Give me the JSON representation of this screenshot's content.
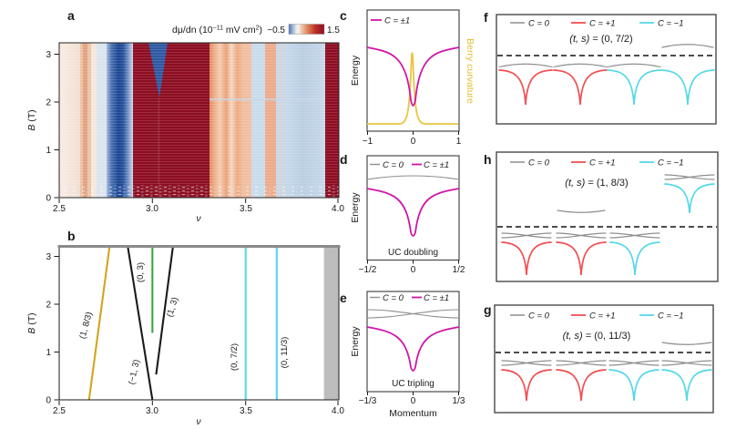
{
  "colors": {
    "black": "#1a1a1a",
    "gray": "#8e8e8e",
    "red": "#f24e52",
    "cyan": "#55d8e8",
    "magenta": "#d016a8",
    "yellow": "#e9c53e",
    "gold": "#d2a51f",
    "green": "#3aa83a",
    "dark_red": "#8d0e22",
    "dark_blue": "#1c4590",
    "shade_gray": "#bdbdbd"
  },
  "panel_a": {
    "label": "a",
    "colorbar": {
      "p1": "dμ/dn (10",
      "sup1": "−11",
      "p2": " mV cm",
      "sup2": "2",
      "p3": ")",
      "min": "−0.5",
      "max": "1.5"
    },
    "ylabel_var": "B",
    "ylabel_unit": " (T)",
    "xlabel": "ν",
    "yticks": [
      "0",
      "1",
      "2",
      "3"
    ],
    "xticks": [
      "2.5",
      "3.0",
      "3.5",
      "4.0"
    ]
  },
  "panel_b": {
    "label": "b",
    "ylabel_var": "B",
    "ylabel_unit": " (T)",
    "xlabel": "ν",
    "yticks": [
      "0",
      "1",
      "2",
      "3"
    ],
    "xticks": [
      "2.5",
      "3.0",
      "3.5",
      "4.0"
    ],
    "lines": [
      {
        "label": "(1, 8/3)",
        "color": "gold",
        "from": [
          2.66,
          0
        ],
        "to": [
          2.77,
          3.2
        ]
      },
      {
        "label": "(−1, 3)",
        "color": "black",
        "from": [
          3.0,
          0
        ],
        "to": [
          2.868,
          3.2
        ]
      },
      {
        "label": "(0, 3)",
        "color": "green",
        "from": [
          3.0,
          1.4
        ],
        "to": [
          3.0,
          3.2
        ]
      },
      {
        "label": "(1, 3)",
        "color": "black",
        "from": [
          3.02,
          0.53
        ],
        "to": [
          3.11,
          3.2
        ]
      },
      {
        "label": "(0, 7/2)",
        "color": "cyan",
        "from": [
          3.5,
          0
        ],
        "to": [
          3.5,
          3.2
        ]
      },
      {
        "label": "(0, 11/3)",
        "color": "cyan",
        "from": [
          3.667,
          0
        ],
        "to": [
          3.667,
          3.2
        ]
      }
    ],
    "shaded_region": [
      3.92,
      4.0
    ]
  },
  "panel_c": {
    "label": "c",
    "legend": [
      {
        "label": "C = ±1",
        "color": "magenta"
      }
    ],
    "ylabel": "Energy",
    "right_label": "Berry curvature",
    "xticks": [
      "−1",
      "0",
      "1"
    ]
  },
  "panel_d": {
    "label": "d",
    "legend": [
      {
        "label": "C = 0",
        "color": "gray"
      },
      {
        "label": "C = ±1",
        "color": "magenta"
      }
    ],
    "caption": "UC doubling",
    "ylabel": "Energy",
    "xticks": [
      "−1/2",
      "0",
      "1/2"
    ]
  },
  "panel_e": {
    "label": "e",
    "legend": [
      {
        "label": "C = 0",
        "color": "gray"
      },
      {
        "label": "C = ±1",
        "color": "magenta"
      }
    ],
    "caption": "UC tripling",
    "ylabel": "Energy",
    "xlabel": "Momentum",
    "xticks": [
      "−1/3",
      "0",
      "1/3"
    ]
  },
  "panel_f": {
    "label": "f",
    "legend": [
      {
        "label": "C = 0",
        "color": "gray"
      },
      {
        "label": "C = +1",
        "color": "red"
      },
      {
        "label": "C = −1",
        "color": "cyan"
      }
    ],
    "title_var": "(t, s)",
    "title_val": " = (0, 7/2)",
    "bands": [
      {
        "col": 0,
        "row": "below",
        "color": "red",
        "caps": "single"
      },
      {
        "col": 1,
        "row": "below",
        "color": "red",
        "caps": "single"
      },
      {
        "col": 2,
        "row": "below",
        "color": "cyan",
        "caps": "single"
      },
      {
        "col": 3,
        "row": "below",
        "color": "cyan",
        "caps": "none"
      },
      {
        "col": 3,
        "row": "detached",
        "shape": "arc"
      }
    ]
  },
  "panel_h": {
    "label": "h",
    "legend": [
      {
        "label": "C = 0",
        "color": "gray"
      },
      {
        "label": "C = +1",
        "color": "red"
      },
      {
        "label": "C = −1",
        "color": "cyan"
      }
    ],
    "title_var": "(t, s)",
    "title_val": " = (1, 8/3)",
    "bands": [
      {
        "col": 0,
        "row": "below",
        "color": "red",
        "caps": "double"
      },
      {
        "col": 1,
        "row": "below",
        "color": "red",
        "caps": "double"
      },
      {
        "col": 2,
        "row": "below",
        "color": "cyan",
        "caps": "double"
      },
      {
        "col": 1,
        "row": "detached",
        "shape": "sag"
      },
      {
        "col": 3,
        "row": "high",
        "color": "cyan",
        "caps": "double"
      }
    ]
  },
  "panel_g": {
    "label": "g",
    "legend": [
      {
        "label": "C = 0",
        "color": "gray"
      },
      {
        "label": "C = +1",
        "color": "red"
      },
      {
        "label": "C = −1",
        "color": "cyan"
      }
    ],
    "title_var": "(t, s)",
    "title_val": " = (0, 11/3)",
    "bands": [
      {
        "col": 0,
        "row": "below",
        "color": "red",
        "caps": "double"
      },
      {
        "col": 1,
        "row": "below",
        "color": "red",
        "caps": "double"
      },
      {
        "col": 2,
        "row": "below",
        "color": "cyan",
        "caps": "double"
      },
      {
        "col": 3,
        "row": "below",
        "color": "cyan",
        "caps": "double"
      },
      {
        "col": 3,
        "row": "detached",
        "shape": "sag"
      }
    ]
  },
  "chart_data": [
    {
      "panel": "a",
      "type": "heatmap",
      "xlabel": "ν",
      "xlim": [
        2.5,
        4.0
      ],
      "ylabel": "B (T)",
      "ylim": [
        0,
        3.24
      ],
      "color_scale": {
        "label": "dμ/dn (10−11 mV cm2)",
        "min": -0.5,
        "max": 1.5,
        "colormap": "blue-white-red"
      },
      "features": [
        "pale weakly positive background for ν < 2.78",
        "strong negative (dark blue) vertical band at ν ≈ 2.78–2.93",
        "strong positive (dark red) incompressible region ν ≈ 2.93–3.3 around ν = 3",
        "dark blue wedge near ν ≈ 3.0–3.1 closing at B ≈ 2.1 T",
        "textured positive (salmon) band ν ≈ 3.3–3.52",
        "weak negative (light blue) bands ν ≈ 3.52–3.6 and 3.66–3.92",
        "positive streak near ν ≈ 3.6–3.66",
        "strong positive (dark red) band ν ≈ 3.92–4.0"
      ]
    },
    {
      "panel": "b",
      "type": "line",
      "xlabel": "ν",
      "xlim": [
        2.5,
        4.0
      ],
      "ylabel": "B (T)",
      "ylim": [
        0,
        3.2
      ],
      "series": [
        {
          "name": "(1, 8/3)",
          "color": "gold",
          "points": [
            [
              2.66,
              0
            ],
            [
              2.77,
              3.2
            ]
          ]
        },
        {
          "name": "(−1, 3)",
          "color": "black",
          "points": [
            [
              3.0,
              0
            ],
            [
              2.868,
              3.2
            ]
          ]
        },
        {
          "name": "(0, 3)",
          "color": "green",
          "points": [
            [
              3.0,
              1.4
            ],
            [
              3.0,
              3.2
            ]
          ]
        },
        {
          "name": "(1, 3)",
          "color": "black",
          "points": [
            [
              3.02,
              0.53
            ],
            [
              3.11,
              3.2
            ]
          ]
        },
        {
          "name": "(0, 7/2)",
          "color": "cyan",
          "points": [
            [
              3.5,
              0
            ],
            [
              3.5,
              3.2
            ]
          ]
        },
        {
          "name": "(0, 11/3)",
          "color": "cyan",
          "points": [
            [
              3.667,
              0
            ],
            [
              3.667,
              3.2
            ]
          ]
        }
      ],
      "shaded_x_region": [
        3.92,
        4.0
      ]
    },
    {
      "panel": "c",
      "type": "line",
      "xticks": [
        -1,
        0,
        1
      ],
      "ylabel": "Energy",
      "series": [
        {
          "name": "C = ±1",
          "color": "magenta",
          "shape": "band with deep narrow dip at momentum 0"
        },
        {
          "name": "Berry curvature",
          "color": "yellow",
          "shape": "sharp peak concentrated at momentum 0"
        }
      ]
    },
    {
      "panel": "d",
      "type": "line",
      "title": "UC doubling",
      "xticks": [
        "-1/2",
        "0",
        "1/2"
      ],
      "ylabel": "Energy",
      "series": [
        {
          "name": "C = 0",
          "color": "gray",
          "shape": "shallow flat band above"
        },
        {
          "name": "C = ±1",
          "color": "magenta",
          "shape": "band with deep dip at 0"
        }
      ]
    },
    {
      "panel": "e",
      "type": "line",
      "title": "UC tripling",
      "xticks": [
        "-1/3",
        "0",
        "1/3"
      ],
      "xlabel": "Momentum",
      "ylabel": "Energy",
      "series": [
        {
          "name": "C = 0",
          "color": "gray",
          "shape": "two shallow crossing bands"
        },
        {
          "name": "C = ±1",
          "color": "magenta",
          "shape": "band with deep dip at 0"
        }
      ]
    },
    {
      "panel": "f",
      "type": "band-diagram",
      "title": "(t, s) = (0, 7/2)",
      "legend": [
        "C = 0",
        "C = +1",
        "C = −1"
      ],
      "below_gap": [
        "C=+1 dip with C=0 cap",
        "C=+1 dip with C=0 cap",
        "C=−1 dip with C=0 cap",
        "C=−1 dip"
      ],
      "above_gap": [
        "C=0 band over 4th position"
      ]
    },
    {
      "panel": "h",
      "type": "band-diagram",
      "title": "(t, s) = (1, 8/3)",
      "legend": [
        "C = 0",
        "C = +1",
        "C = −1"
      ],
      "below_gap": [
        "C=+1 dip with two C=0 bands",
        "C=+1 dip with two C=0 bands",
        "C=−1 dip with two C=0 bands"
      ],
      "above_gap": [
        "C=0 shallow band over 2nd position",
        "raised C=−1 dip with two C=0 bands at 4th position"
      ]
    },
    {
      "panel": "g",
      "type": "band-diagram",
      "title": "(t, s) = (0, 11/3)",
      "legend": [
        "C = 0",
        "C = +1",
        "C = −1"
      ],
      "below_gap": [
        "C=+1 dip with two C=0 bands",
        "C=+1 dip with two C=0 bands",
        "C=−1 dip with two C=0 bands",
        "C=−1 dip with two C=0 bands"
      ],
      "above_gap": [
        "C=0 shallow band over 4th position"
      ]
    }
  ]
}
